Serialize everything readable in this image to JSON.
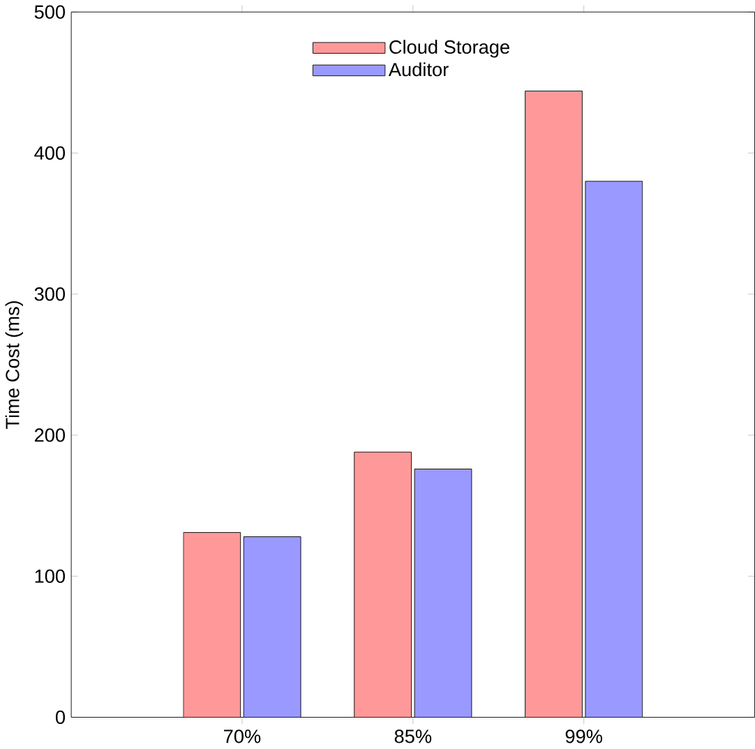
{
  "chart_data": {
    "type": "bar",
    "ylabel": "Time Cost (ms)",
    "categories": [
      "70%",
      "85%",
      "99%"
    ],
    "series": [
      {
        "name": "Cloud Storage",
        "color": "#ff9999",
        "values": [
          131,
          188,
          444
        ]
      },
      {
        "name": "Auditor",
        "color": "#9999ff",
        "values": [
          128,
          176,
          380
        ]
      }
    ],
    "ylim": [
      0,
      500
    ],
    "yticks": [
      0,
      100,
      200,
      300,
      400,
      500
    ],
    "grid": false,
    "legend": "top"
  }
}
